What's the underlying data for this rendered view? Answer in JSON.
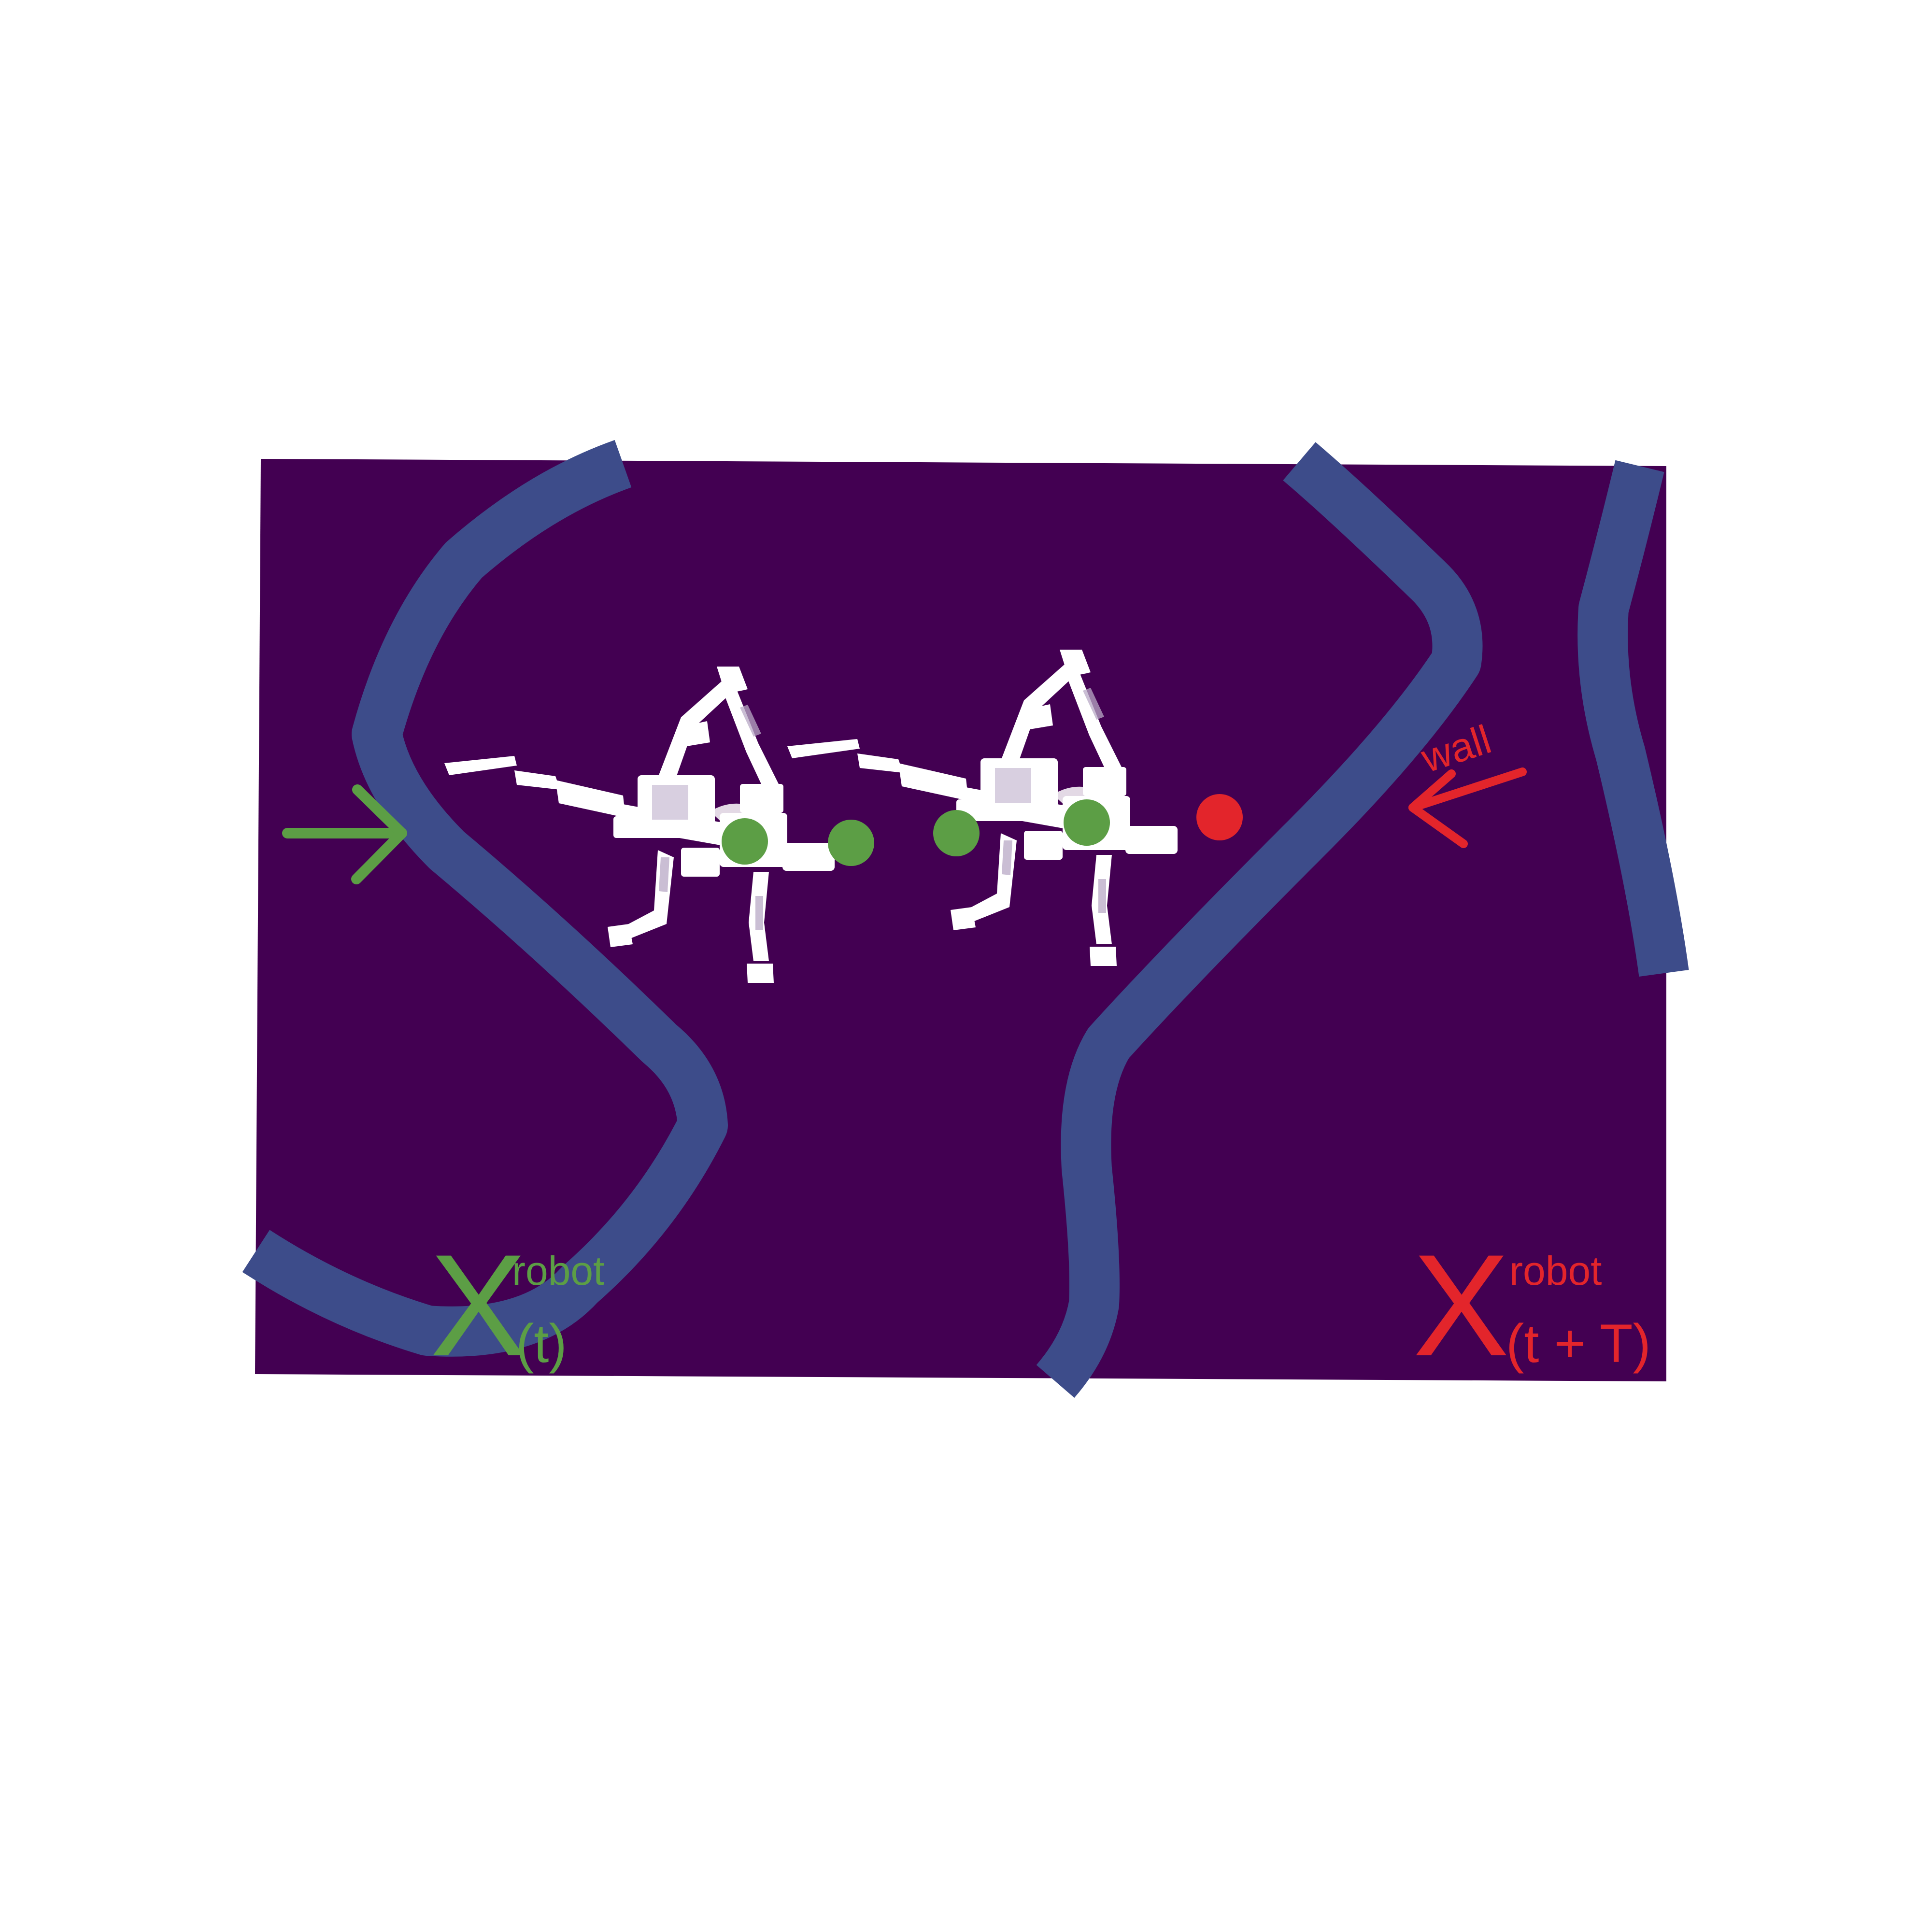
{
  "colors": {
    "background": "#ffffff",
    "field": "#430052",
    "wall_band": "#3d4c8a",
    "robot": "#ffffff",
    "robot_detail": "#b8a8c6",
    "current": "#5c9e45",
    "future": "#e3252b"
  },
  "labels": {
    "wall": "wall",
    "current_symbol": "X",
    "current_superscript": "robot",
    "current_subscript": "(t)",
    "future_symbol": "X",
    "future_superscript": "robot",
    "future_subscript": "(t + T)"
  },
  "markers": {
    "current_points": 4,
    "future_points": 1
  },
  "icons": {
    "entry_arrow": "arrow-right-icon",
    "wall_arrow": "arrow-left-icon"
  }
}
